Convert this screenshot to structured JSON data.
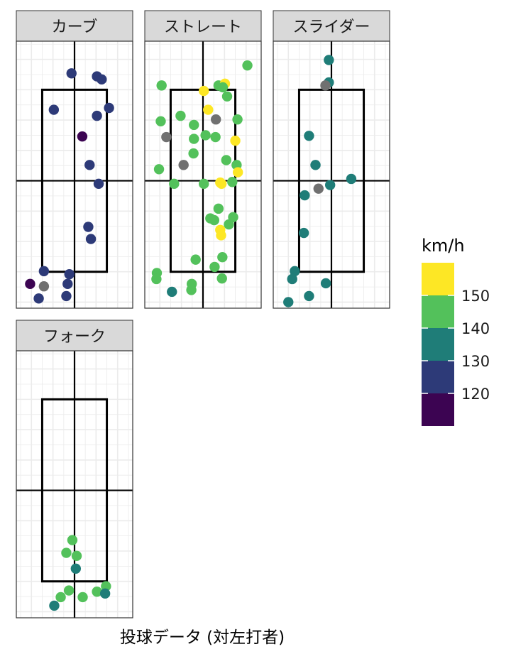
{
  "chart_data": {
    "type": "scatter",
    "caption": "投球データ (対左打者)",
    "legend": {
      "title": "km/h",
      "ticks": [
        "150",
        "140",
        "130",
        "120"
      ],
      "bins": [
        {
          "color": "#FDE725"
        },
        {
          "color": "#53C15B"
        },
        {
          "color": "#1F7D78"
        },
        {
          "color": "#2D3A78"
        },
        {
          "color": "#3C0452"
        }
      ],
      "na_color": "#707070"
    },
    "strike_zone": {
      "x": [
        -0.75,
        0.75
      ],
      "y": [
        -1.5,
        1.5
      ]
    },
    "xlim": [
      -1.35,
      1.35
    ],
    "ylim": [
      -2.1,
      2.3
    ],
    "grid": true,
    "panels": [
      {
        "name": "カーブ",
        "points": [
          {
            "x": -0.07,
            "y": 1.77,
            "bin": 3
          },
          {
            "x": 0.52,
            "y": 1.72,
            "bin": 3
          },
          {
            "x": 0.63,
            "y": 1.67,
            "bin": 3
          },
          {
            "x": -0.48,
            "y": 1.17,
            "bin": 3
          },
          {
            "x": 0.8,
            "y": 1.2,
            "bin": 3
          },
          {
            "x": 0.52,
            "y": 1.07,
            "bin": 3
          },
          {
            "x": 0.18,
            "y": 0.73,
            "bin": 4
          },
          {
            "x": 0.35,
            "y": 0.26,
            "bin": 3
          },
          {
            "x": 0.56,
            "y": -0.05,
            "bin": 3
          },
          {
            "x": 0.32,
            "y": -0.76,
            "bin": 3
          },
          {
            "x": 0.38,
            "y": -0.96,
            "bin": 3
          },
          {
            "x": -0.71,
            "y": -1.49,
            "bin": 3
          },
          {
            "x": -0.12,
            "y": -1.54,
            "bin": 3
          },
          {
            "x": -1.03,
            "y": -1.7,
            "bin": 4
          },
          {
            "x": -0.71,
            "y": -1.74,
            "bin": null
          },
          {
            "x": -0.16,
            "y": -1.7,
            "bin": 3
          },
          {
            "x": -0.83,
            "y": -1.94,
            "bin": 3
          },
          {
            "x": -0.19,
            "y": -1.9,
            "bin": 3
          }
        ]
      },
      {
        "name": "ストレート",
        "points": [
          {
            "x": 1.03,
            "y": 1.9,
            "bin": 1
          },
          {
            "x": -0.96,
            "y": 1.57,
            "bin": 1
          },
          {
            "x": 0.36,
            "y": 1.57,
            "bin": 1
          },
          {
            "x": 0.51,
            "y": 1.6,
            "bin": 0
          },
          {
            "x": 0.46,
            "y": 1.54,
            "bin": 1
          },
          {
            "x": 0.02,
            "y": 1.48,
            "bin": 0
          },
          {
            "x": 0.56,
            "y": 1.39,
            "bin": 1
          },
          {
            "x": 0.12,
            "y": 1.17,
            "bin": 0
          },
          {
            "x": -0.52,
            "y": 1.07,
            "bin": 1
          },
          {
            "x": 0.3,
            "y": 1.01,
            "bin": null
          },
          {
            "x": -0.98,
            "y": 0.98,
            "bin": 1
          },
          {
            "x": 0.8,
            "y": 1.01,
            "bin": 1
          },
          {
            "x": -0.21,
            "y": 0.92,
            "bin": 1
          },
          {
            "x": -0.85,
            "y": 0.72,
            "bin": null
          },
          {
            "x": -0.21,
            "y": 0.69,
            "bin": 1
          },
          {
            "x": 0.06,
            "y": 0.75,
            "bin": 1
          },
          {
            "x": 0.29,
            "y": 0.72,
            "bin": 1
          },
          {
            "x": 0.75,
            "y": 0.66,
            "bin": 0
          },
          {
            "x": -0.22,
            "y": 0.45,
            "bin": 1
          },
          {
            "x": 0.54,
            "y": 0.34,
            "bin": 1
          },
          {
            "x": -0.45,
            "y": 0.26,
            "bin": null
          },
          {
            "x": 0.78,
            "y": 0.26,
            "bin": 1
          },
          {
            "x": -1.02,
            "y": 0.19,
            "bin": 1
          },
          {
            "x": 0.81,
            "y": 0.14,
            "bin": 0
          },
          {
            "x": -0.67,
            "y": -0.05,
            "bin": 1
          },
          {
            "x": 0.02,
            "y": -0.05,
            "bin": 1
          },
          {
            "x": 0.4,
            "y": -0.03,
            "bin": 0
          },
          {
            "x": 0.43,
            "y": -0.05,
            "bin": 0
          },
          {
            "x": 0.68,
            "y": -0.02,
            "bin": 1
          },
          {
            "x": 0.36,
            "y": -0.46,
            "bin": 1
          },
          {
            "x": 0.17,
            "y": -0.62,
            "bin": 1
          },
          {
            "x": 0.26,
            "y": -0.65,
            "bin": 1
          },
          {
            "x": 0.7,
            "y": -0.6,
            "bin": 1
          },
          {
            "x": 0.6,
            "y": -0.72,
            "bin": 1
          },
          {
            "x": 0.4,
            "y": -0.81,
            "bin": 0
          },
          {
            "x": 0.42,
            "y": -0.9,
            "bin": 0
          },
          {
            "x": -0.17,
            "y": -1.3,
            "bin": 1
          },
          {
            "x": 0.45,
            "y": -1.26,
            "bin": 1
          },
          {
            "x": 0.27,
            "y": -1.42,
            "bin": 1
          },
          {
            "x": -1.07,
            "y": -1.52,
            "bin": 1
          },
          {
            "x": -1.08,
            "y": -1.62,
            "bin": 1
          },
          {
            "x": 0.44,
            "y": -1.61,
            "bin": 1
          },
          {
            "x": -0.26,
            "y": -1.7,
            "bin": 1
          },
          {
            "x": -0.27,
            "y": -1.8,
            "bin": 1
          },
          {
            "x": -0.72,
            "y": -1.83,
            "bin": 2
          }
        ]
      },
      {
        "name": "スライダー",
        "points": [
          {
            "x": -0.06,
            "y": 1.99,
            "bin": 2
          },
          {
            "x": -0.06,
            "y": 1.62,
            "bin": 2
          },
          {
            "x": -0.14,
            "y": 1.57,
            "bin": null
          },
          {
            "x": -0.52,
            "y": 0.74,
            "bin": 2
          },
          {
            "x": -0.37,
            "y": 0.26,
            "bin": 2
          },
          {
            "x": 0.46,
            "y": 0.03,
            "bin": 2
          },
          {
            "x": -0.03,
            "y": -0.07,
            "bin": 2
          },
          {
            "x": -0.3,
            "y": -0.13,
            "bin": null
          },
          {
            "x": -0.62,
            "y": -0.24,
            "bin": 2
          },
          {
            "x": -0.64,
            "y": -0.86,
            "bin": 2
          },
          {
            "x": -0.85,
            "y": -1.49,
            "bin": 2
          },
          {
            "x": -0.91,
            "y": -1.62,
            "bin": 2
          },
          {
            "x": -0.13,
            "y": -1.69,
            "bin": 2
          },
          {
            "x": -0.52,
            "y": -1.9,
            "bin": 2
          },
          {
            "x": -1.0,
            "y": -2.0,
            "bin": 2
          }
        ]
      },
      {
        "name": "フォーク",
        "points": [
          {
            "x": -0.05,
            "y": -0.82,
            "bin": 1
          },
          {
            "x": -0.19,
            "y": -1.03,
            "bin": 1
          },
          {
            "x": 0.05,
            "y": -1.08,
            "bin": 1
          },
          {
            "x": 0.03,
            "y": -1.29,
            "bin": 2
          },
          {
            "x": 0.73,
            "y": -1.58,
            "bin": 1
          },
          {
            "x": -0.13,
            "y": -1.65,
            "bin": 1
          },
          {
            "x": 0.52,
            "y": -1.67,
            "bin": 1
          },
          {
            "x": 0.71,
            "y": -1.7,
            "bin": 2
          },
          {
            "x": -0.32,
            "y": -1.76,
            "bin": 1
          },
          {
            "x": 0.19,
            "y": -1.76,
            "bin": 1
          },
          {
            "x": -0.47,
            "y": -1.9,
            "bin": 2
          }
        ]
      }
    ]
  }
}
